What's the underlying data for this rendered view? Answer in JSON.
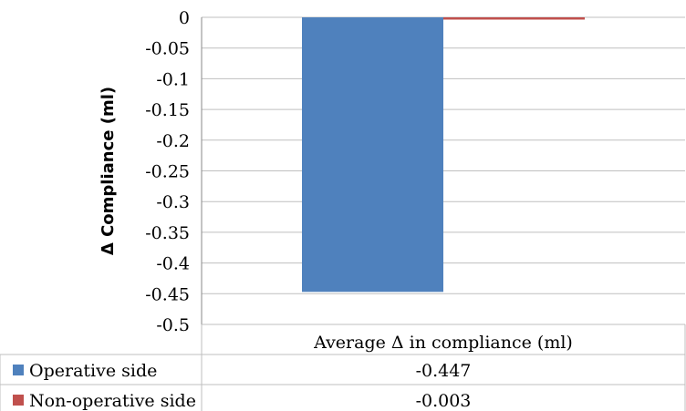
{
  "chart_data": {
    "type": "bar",
    "title": "",
    "ylabel": "Δ Compliance (ml)",
    "xlabel": "",
    "categories": [
      "Average Δ in compliance (ml)"
    ],
    "ylim": [
      -0.5,
      0
    ],
    "yticks": [
      0,
      -0.05,
      -0.1,
      -0.15,
      -0.2,
      -0.25,
      -0.3,
      -0.35,
      -0.4,
      -0.45,
      -0.5
    ],
    "ytick_labels": [
      "0",
      "-0.05",
      "-0.1",
      "-0.15",
      "-0.2",
      "-0.25",
      "-0.3",
      "-0.35",
      "-0.4",
      "-0.45",
      "-0.5"
    ],
    "grid": true,
    "legend": "data-table",
    "series": [
      {
        "name": "Operative side",
        "values": [
          -0.447
        ],
        "value_labels": [
          "-0.447"
        ],
        "color": "#4F81BD"
      },
      {
        "name": "Non-operative side",
        "values": [
          -0.003
        ],
        "value_labels": [
          "-0.003"
        ],
        "color": "#C0504D"
      }
    ]
  }
}
